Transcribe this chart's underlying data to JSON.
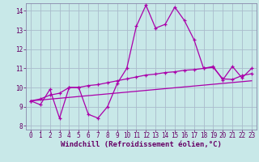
{
  "xlabel": "Windchill (Refroidissement éolien,°C)",
  "bg_color": "#c8e8e8",
  "grid_color": "#aabbcc",
  "line_color": "#aa00aa",
  "spine_color": "#8888aa",
  "xlim": [
    -0.5,
    23.5
  ],
  "ylim": [
    7.8,
    14.4
  ],
  "yticks": [
    8,
    9,
    10,
    11,
    12,
    13,
    14
  ],
  "xticks": [
    0,
    1,
    2,
    3,
    4,
    5,
    6,
    7,
    8,
    9,
    10,
    11,
    12,
    13,
    14,
    15,
    16,
    17,
    18,
    19,
    20,
    21,
    22,
    23
  ],
  "series1_x": [
    0,
    1,
    2,
    3,
    4,
    5,
    6,
    7,
    8,
    9,
    10,
    11,
    12,
    13,
    14,
    15,
    16,
    17,
    18,
    19,
    20,
    21,
    22,
    23
  ],
  "series1_y": [
    9.3,
    9.1,
    9.9,
    8.4,
    10.0,
    10.0,
    8.6,
    8.4,
    9.0,
    10.2,
    11.0,
    13.2,
    14.3,
    13.1,
    13.3,
    14.2,
    13.5,
    12.5,
    11.0,
    11.1,
    10.4,
    11.1,
    10.5,
    11.0
  ],
  "series2_x": [
    0,
    1,
    2,
    3,
    4,
    5,
    6,
    7,
    8,
    9,
    10,
    11,
    12,
    13,
    14,
    15,
    16,
    17,
    18,
    19,
    20,
    21,
    22,
    23
  ],
  "series2_y": [
    9.3,
    9.4,
    9.6,
    9.7,
    10.0,
    10.0,
    10.1,
    10.15,
    10.25,
    10.35,
    10.45,
    10.55,
    10.65,
    10.7,
    10.78,
    10.82,
    10.9,
    10.93,
    11.0,
    11.05,
    10.45,
    10.42,
    10.62,
    10.72
  ],
  "series3_x": [
    0,
    23
  ],
  "series3_y": [
    9.3,
    10.35
  ],
  "tick_color": "#660066",
  "tick_fontsize": 5.5,
  "xlabel_fontsize": 6.5
}
